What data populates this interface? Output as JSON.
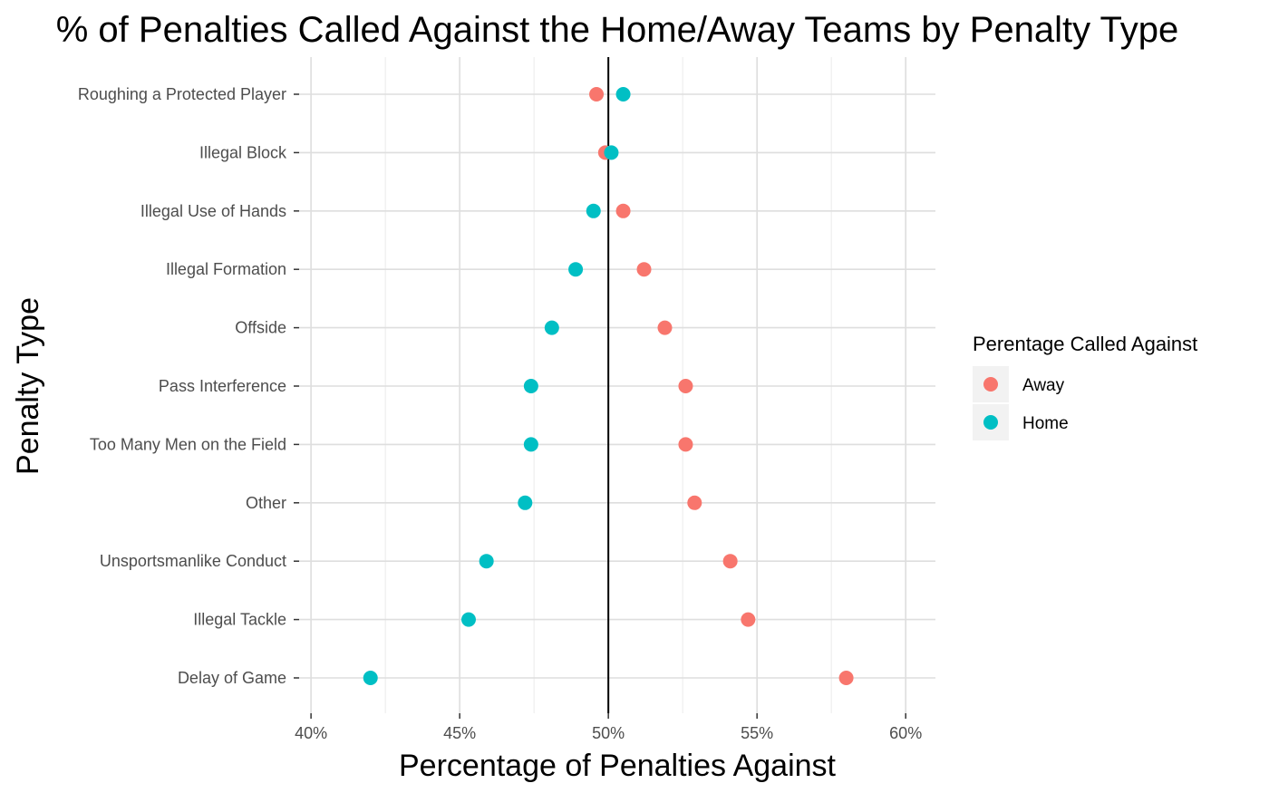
{
  "chart_data": {
    "type": "scatter",
    "title": "% of Penalties Called Against the Home/Away Teams by Penalty Type",
    "xlabel": "Percentage of Penalties Against",
    "ylabel": "Penalty Type",
    "xlim": [
      39.6,
      61.0
    ],
    "x_ticks": [
      40,
      45,
      50,
      55,
      60
    ],
    "x_tick_labels": [
      "40%",
      "45%",
      "50%",
      "55%",
      "60%"
    ],
    "reference_line_x": 50,
    "grid": true,
    "legend": {
      "title": "Perentage Called Against",
      "position": "right",
      "entries": [
        "Away",
        "Home"
      ]
    },
    "categories": [
      "Roughing a Protected Player",
      "Illegal Block",
      "Illegal Use of Hands",
      "Illegal Formation",
      "Offside",
      "Pass Interference",
      "Too Many Men on the Field",
      "Other",
      "Unsportsmanlike Conduct",
      "Illegal Tackle",
      "Delay of Game"
    ],
    "series": [
      {
        "name": "Away",
        "color": "#F8766D",
        "values": [
          49.6,
          49.9,
          50.5,
          51.2,
          51.9,
          52.6,
          52.6,
          52.9,
          54.1,
          54.7,
          58.0
        ]
      },
      {
        "name": "Home",
        "color": "#00BFC4",
        "values": [
          50.5,
          50.1,
          49.5,
          48.9,
          48.1,
          47.4,
          47.4,
          47.2,
          45.9,
          45.3,
          42.0
        ]
      }
    ]
  }
}
